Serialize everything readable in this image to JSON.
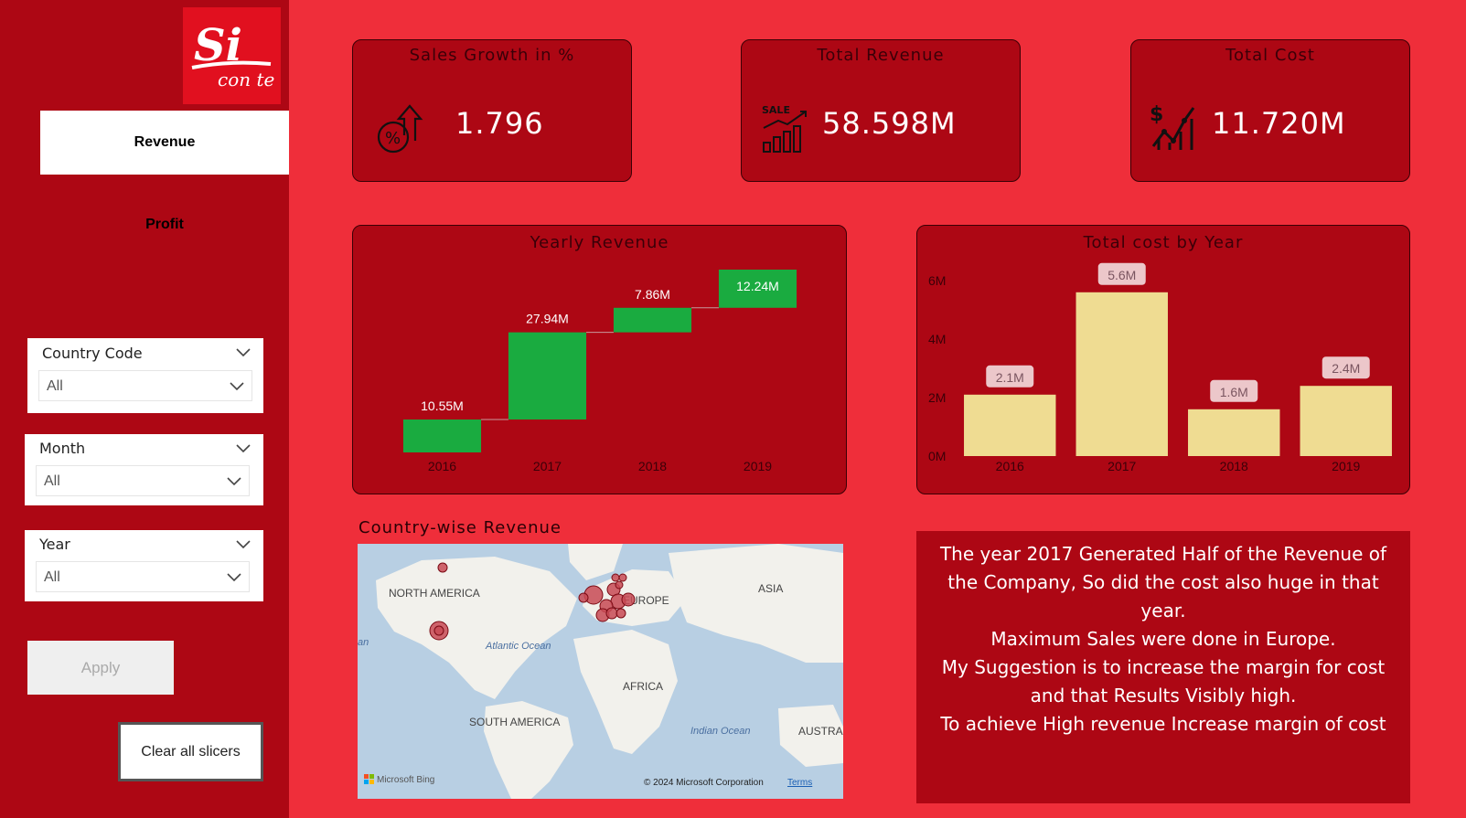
{
  "sidebar": {
    "logo": {
      "text_main": "Si",
      "text_sub": "con te"
    },
    "nav": {
      "revenue_label": "Revenue",
      "profit_label": "Profit"
    },
    "slicers": [
      {
        "title": "Country Code",
        "value": "All"
      },
      {
        "title": "Month",
        "value": "All"
      },
      {
        "title": "Year",
        "value": "All"
      }
    ],
    "apply_label": "Apply",
    "clear_label": "Clear all slicers"
  },
  "kpis": [
    {
      "title": "Sales Growth in %",
      "value": "1.796",
      "icon": "percent-growth-icon"
    },
    {
      "title": "Total Revenue",
      "value": "58.598M",
      "icon": "sale-bar-chart-icon",
      "icon_text": "SALE"
    },
    {
      "title": "Total Cost",
      "value": "11.720M",
      "icon": "dollar-trend-icon"
    }
  ],
  "charts": {
    "yearly_revenue_title": "Yearly Revenue",
    "total_cost_title": "Total cost by Year",
    "map_title": "Country-wise Revenue"
  },
  "chart_data": [
    {
      "type": "waterfall",
      "title": "Yearly Revenue",
      "categories": [
        "2016",
        "2017",
        "2018",
        "2019"
      ],
      "values": [
        10.55,
        27.94,
        7.86,
        12.24
      ],
      "labels": [
        "10.55M",
        "27.94M",
        "7.86M",
        "12.24M"
      ],
      "bar_color": "#1aab40",
      "grid": false
    },
    {
      "type": "bar",
      "title": "Total cost by Year",
      "categories": [
        "2016",
        "2017",
        "2018",
        "2019"
      ],
      "values": [
        2.1,
        5.6,
        1.6,
        2.4
      ],
      "labels": [
        "2.1M",
        "5.6M",
        "1.6M",
        "2.4M"
      ],
      "y_ticks": [
        "0M",
        "2M",
        "4M",
        "6M"
      ],
      "ylim": [
        0,
        6
      ],
      "bar_color": "#efdc92",
      "grid": false
    }
  ],
  "map": {
    "labels": {
      "north_america": "NORTH AMERICA",
      "europe": "EUROPE",
      "asia": "ASIA",
      "atlantic": "Atlantic Ocean",
      "africa": "AFRICA",
      "south_america": "SOUTH AMERICA",
      "indian": "Indian Ocean",
      "austral": "AUSTRA",
      "edge": "an"
    },
    "attribution": "Microsoft Bing",
    "copyright": "© 2024 Microsoft Corporation",
    "terms": "Terms"
  },
  "note": {
    "lines": [
      "The year 2017 Generated Half of the Revenue of",
      "the Company, So did the cost also huge in that",
      "year.",
      "Maximum Sales were done in Europe.",
      "My Suggestion is to increase the margin for cost",
      "and that Results Visibly high.",
      "To achieve High revenue Increase margin of cost"
    ]
  },
  "colors": {
    "page_bg": "#ef2e3a",
    "panel_bg": "#ad0714",
    "waterfall_bar": "#1aab40",
    "cost_bar": "#efdc92"
  }
}
